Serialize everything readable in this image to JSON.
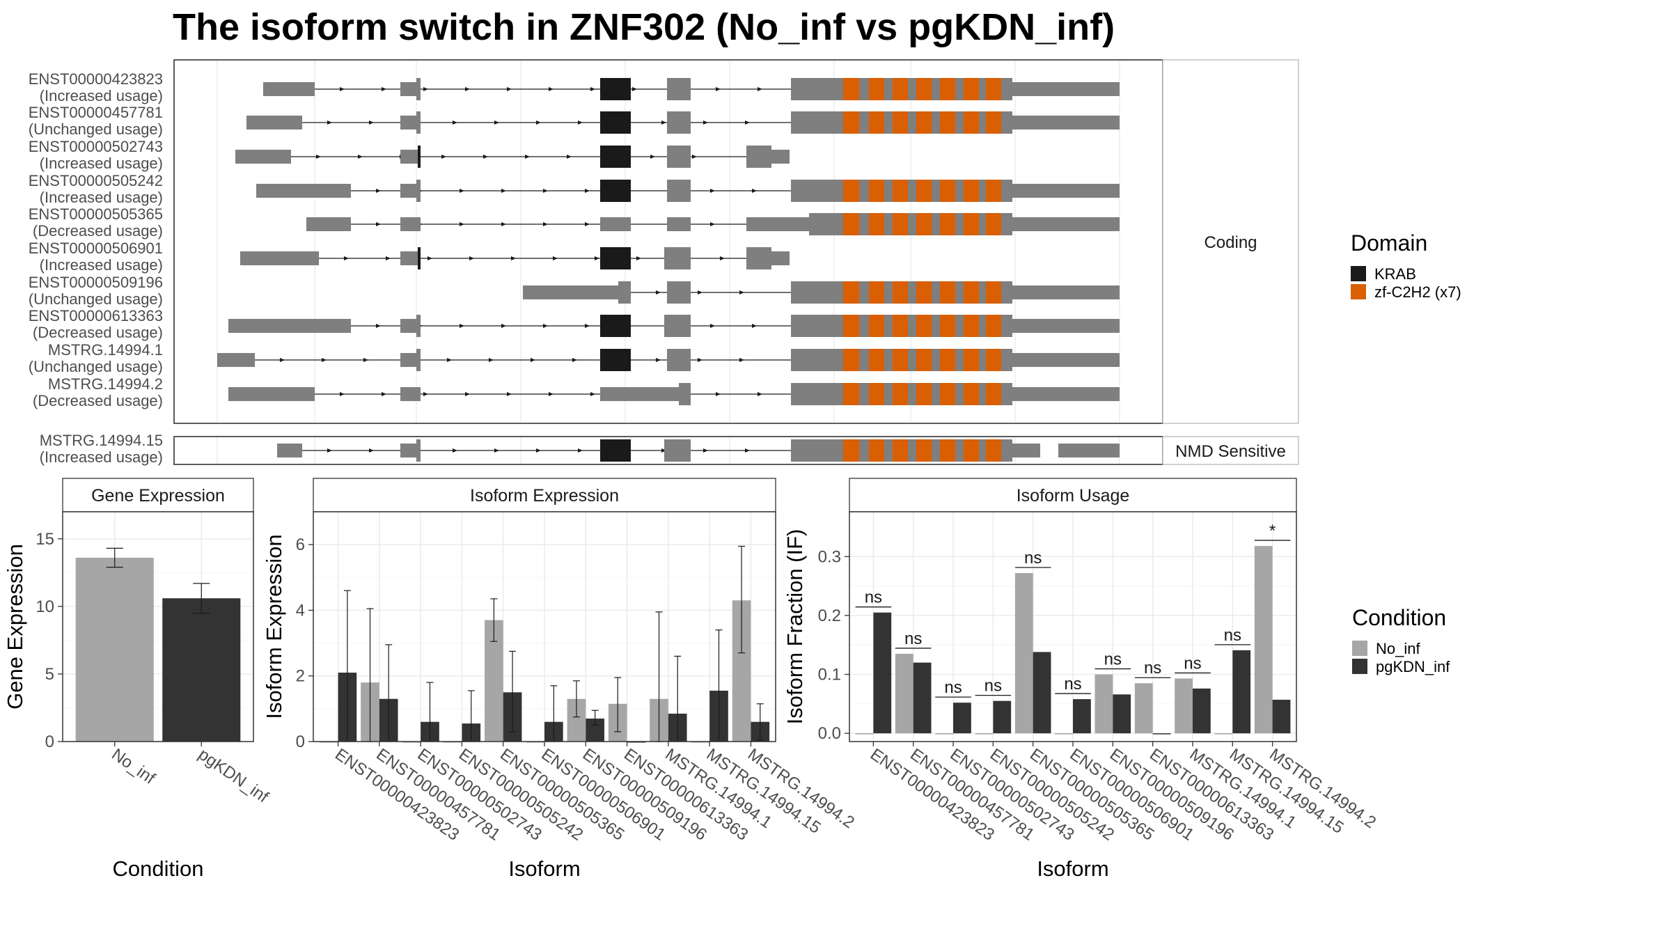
{
  "title": "The isoform switch in ZNF302 (No_inf vs pgKDN_inf)",
  "colors": {
    "exon": "#7f7f7f",
    "krab": "#1a1a1a",
    "zf": "#d95f02",
    "no_inf": "#a6a6a6",
    "pgkdn_inf": "#333333",
    "panel_border": "#333333",
    "grid": "#ebebeb",
    "strip_fill": "#ffffff"
  },
  "structure": {
    "coding_strip": "Coding",
    "nmd_strip": "NMD Sensitive",
    "isoforms": [
      {
        "id": "ENST00000423823",
        "usage": "(Increased usage)"
      },
      {
        "id": "ENST00000457781",
        "usage": "(Unchanged usage)"
      },
      {
        "id": "ENST00000502743",
        "usage": "(Increased usage)"
      },
      {
        "id": "ENST00000505242",
        "usage": "(Increased usage)"
      },
      {
        "id": "ENST00000505365",
        "usage": "(Decreased usage)"
      },
      {
        "id": "ENST00000506901",
        "usage": "(Increased usage)"
      },
      {
        "id": "ENST00000509196",
        "usage": "(Unchanged usage)"
      },
      {
        "id": "ENST00000613363",
        "usage": "(Decreased usage)"
      },
      {
        "id": "MSTRG.14994.1",
        "usage": "(Unchanged usage)"
      },
      {
        "id": "MSTRG.14994.2",
        "usage": "(Decreased usage)"
      }
    ],
    "nmd_isoform": {
      "id": "MSTRG.14994.15",
      "usage": "(Increased usage)"
    }
  },
  "domain_legend": {
    "title": "Domain",
    "items": [
      {
        "label": "KRAB",
        "color": "#1a1a1a"
      },
      {
        "label": "zf-C2H2 (x7)",
        "color": "#d95f02"
      }
    ]
  },
  "condition_legend": {
    "title": "Condition",
    "items": [
      {
        "label": "No_inf",
        "color": "#a6a6a6"
      },
      {
        "label": "pgKDN_inf",
        "color": "#333333"
      }
    ]
  },
  "chart_data": [
    {
      "type": "bar",
      "title": "Gene Expression",
      "xlabel": "Condition",
      "ylabel": "Gene Expression",
      "categories": [
        "No_inf",
        "pgKDN_inf"
      ],
      "values": [
        13.6,
        10.6
      ],
      "errors": [
        [
          12.9,
          14.3
        ],
        [
          9.5,
          11.7
        ]
      ],
      "ylim": [
        0,
        17
      ],
      "yticks": [
        0,
        5,
        10,
        15
      ]
    },
    {
      "type": "bar",
      "title": "Isoform Expression",
      "xlabel": "Isoform",
      "ylabel": "Isoform Expression",
      "categories": [
        "ENST00000423823",
        "ENST00000457781",
        "ENST00000502743",
        "ENST00000505242",
        "ENST00000505365",
        "ENST00000506901",
        "ENST00000509196",
        "ENST00000613363",
        "MSTRG.14994.1",
        "MSTRG.14994.15",
        "MSTRG.14994.2"
      ],
      "series": [
        {
          "name": "No_inf",
          "values": [
            0,
            1.8,
            0,
            0,
            3.7,
            0,
            1.3,
            1.15,
            1.3,
            0,
            4.3
          ],
          "errors": [
            null,
            [
              0,
              4.05
            ],
            null,
            null,
            [
              3.05,
              4.35
            ],
            null,
            [
              0.75,
              1.85
            ],
            [
              0.3,
              1.95
            ],
            [
              0,
              3.95
            ],
            null,
            [
              2.7,
              5.95
            ]
          ]
        },
        {
          "name": "pgKDN_inf",
          "values": [
            2.1,
            1.3,
            0.6,
            0.55,
            1.5,
            0.6,
            0.7,
            0,
            0.85,
            1.55,
            0.6
          ],
          "errors": [
            [
              0,
              4.6
            ],
            [
              0,
              2.95
            ],
            [
              0,
              1.8
            ],
            [
              0,
              1.55
            ],
            [
              0.3,
              2.75
            ],
            [
              0,
              1.7
            ],
            [
              0.5,
              0.95
            ],
            null,
            [
              0,
              2.6
            ],
            [
              0,
              3.4
            ],
            [
              0.05,
              1.15
            ]
          ]
        }
      ],
      "ylim": [
        0,
        7
      ],
      "yticks": [
        0,
        2,
        4,
        6
      ]
    },
    {
      "type": "bar",
      "title": "Isoform Usage",
      "xlabel": "Isoform",
      "ylabel": "Isoform Fraction (IF)",
      "categories": [
        "ENST00000423823",
        "ENST00000457781",
        "ENST00000502743",
        "ENST00000505242",
        "ENST00000505365",
        "ENST00000506901",
        "ENST00000509196",
        "ENST00000613363",
        "MSTRG.14994.1",
        "MSTRG.14994.15",
        "MSTRG.14994.2"
      ],
      "series": [
        {
          "name": "No_inf",
          "values": [
            0,
            0.135,
            0,
            0,
            0.272,
            0,
            0.1,
            0.085,
            0.093,
            0,
            0.318
          ]
        },
        {
          "name": "pgKDN_inf",
          "values": [
            0.205,
            0.12,
            0.052,
            0.055,
            0.138,
            0.058,
            0.066,
            0,
            0.076,
            0.141,
            0.057
          ]
        }
      ],
      "significance": [
        "ns",
        "ns",
        "ns",
        "ns",
        "ns",
        "ns",
        "ns",
        "ns",
        "ns",
        "ns",
        "*"
      ],
      "ylim": [
        -0.014,
        0.376
      ],
      "yticks": [
        0.0,
        0.1,
        0.2,
        0.3
      ]
    }
  ]
}
